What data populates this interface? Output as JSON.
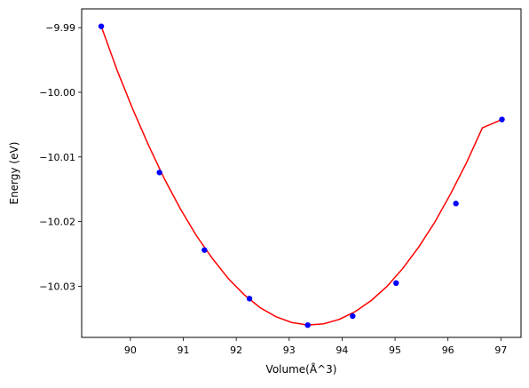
{
  "chart_data": {
    "type": "scatter",
    "title": "",
    "xlabel": "Volume(Å^3)",
    "ylabel": "Energy (eV)",
    "xlim": [
      89.08,
      97.38
    ],
    "ylim": [
      -10.0379,
      -9.9871
    ],
    "x_ticks": [
      90,
      91,
      92,
      93,
      94,
      95,
      96,
      97
    ],
    "x_tick_labels": [
      "90",
      "91",
      "92",
      "93",
      "94",
      "95",
      "96",
      "97"
    ],
    "y_ticks": [
      -9.99,
      -10.0,
      -10.01,
      -10.02,
      -10.03
    ],
    "y_tick_labels": [
      "−9.99",
      "−10.00",
      "−10.01",
      "−10.02",
      "−10.03"
    ],
    "grid": false,
    "series": [
      {
        "kind": "points",
        "color": "#0000ff",
        "x": [
          89.45,
          90.55,
          91.4,
          92.25,
          93.35,
          94.2,
          95.02,
          96.15,
          97.02
        ],
        "y": [
          -9.9898,
          -10.0124,
          -10.0244,
          -10.0319,
          -10.036,
          -10.0346,
          -10.0295,
          -10.0172,
          -10.0042
        ]
      },
      {
        "kind": "fit-curve",
        "color": "#ff0000",
        "x": [
          89.45,
          89.75,
          90.05,
          90.35,
          90.65,
          90.95,
          91.25,
          91.55,
          91.85,
          92.15,
          92.45,
          92.75,
          93.05,
          93.35,
          93.65,
          93.95,
          94.25,
          94.55,
          94.85,
          95.15,
          95.45,
          95.75,
          96.05,
          96.35,
          96.65,
          97.02
        ],
        "y": [
          -9.9898,
          -9.9966,
          -10.0027,
          -10.0083,
          -10.0135,
          -10.0181,
          -10.0222,
          -10.0257,
          -10.0288,
          -10.0313,
          -10.0333,
          -10.0347,
          -10.0356,
          -10.036,
          -10.0358,
          -10.0351,
          -10.0339,
          -10.0322,
          -10.03,
          -10.0272,
          -10.0239,
          -10.0201,
          -10.0157,
          -10.0109,
          -10.0055,
          -10.0042
        ]
      }
    ]
  }
}
